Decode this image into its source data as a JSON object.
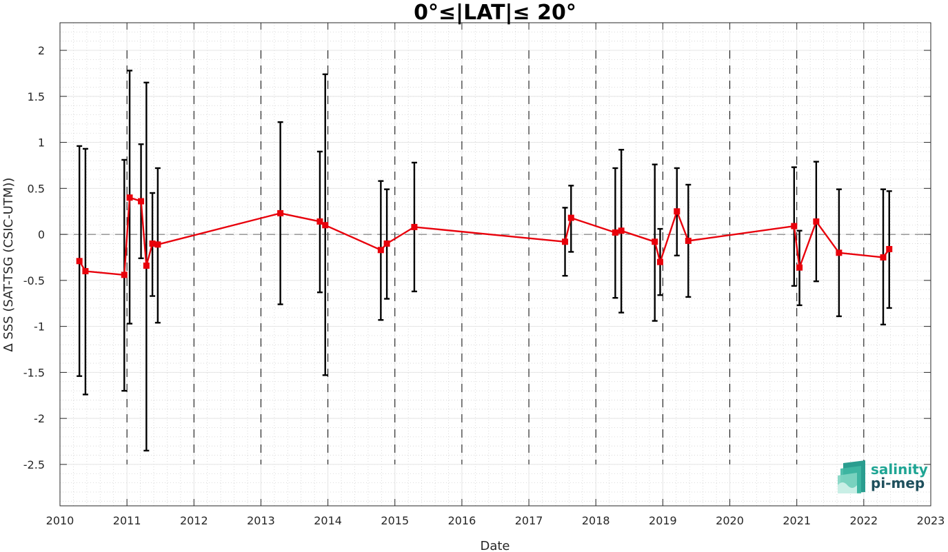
{
  "chart_data": {
    "type": "line",
    "title": "0°≤|LAT|≤ 20°",
    "xlabel": "Date",
    "ylabel": "∆ SSS (SAT-TSG (CSIC-UTM))",
    "xlim": [
      2010,
      2023
    ],
    "ylim": [
      -2.95,
      2.3
    ],
    "xticks": [
      "2010",
      "2011",
      "2012",
      "2013",
      "2014",
      "2015",
      "2016",
      "2017",
      "2018",
      "2019",
      "2020",
      "2021",
      "2022",
      "2023"
    ],
    "yticks": [
      "2",
      "1.5",
      "1",
      "0.5",
      "0",
      "-0.5",
      "-1",
      "-1.5",
      "-2",
      "-2.5"
    ],
    "grid": true,
    "zero_line": true,
    "year_markers": [
      2011,
      2012,
      2013,
      2014,
      2015,
      2016,
      2017,
      2018,
      2019,
      2020,
      2021,
      2022
    ],
    "series": [
      {
        "color": "#e8000b",
        "marker": "square",
        "x": [
          2010.29,
          2010.38,
          2010.96,
          2011.04,
          2011.21,
          2011.29,
          2011.38,
          2011.46,
          2013.29,
          2013.88,
          2013.96,
          2014.79,
          2014.88,
          2015.29,
          2017.54,
          2017.63,
          2018.29,
          2018.38,
          2018.88,
          2018.96,
          2019.21,
          2019.38,
          2020.96,
          2021.04,
          2021.29,
          2021.63,
          2022.29,
          2022.38
        ],
        "y": [
          -0.29,
          -0.4,
          -0.44,
          0.4,
          0.36,
          -0.34,
          -0.1,
          -0.11,
          0.23,
          0.14,
          0.1,
          -0.17,
          -0.1,
          0.08,
          -0.08,
          0.18,
          0.02,
          0.04,
          -0.08,
          -0.3,
          0.25,
          -0.07,
          0.09,
          -0.36,
          0.14,
          -0.2,
          -0.25,
          -0.16
        ],
        "err_low": [
          -1.54,
          -1.74,
          -1.7,
          -0.97,
          -0.26,
          -2.35,
          -0.67,
          -0.96,
          -0.76,
          -0.63,
          -1.53,
          -0.93,
          -0.7,
          -0.62,
          -0.45,
          -0.19,
          -0.69,
          -0.85,
          -0.94,
          -0.66,
          -0.23,
          -0.68,
          -0.56,
          -0.77,
          -0.51,
          -0.89,
          -0.98,
          -0.8
        ],
        "err_high": [
          0.96,
          0.93,
          0.81,
          1.78,
          0.98,
          1.65,
          0.45,
          0.72,
          1.22,
          0.9,
          1.74,
          0.58,
          0.49,
          0.78,
          0.29,
          0.53,
          0.72,
          0.92,
          0.76,
          0.06,
          0.72,
          0.54,
          0.73,
          0.04,
          0.79,
          0.49,
          0.49,
          0.47
        ]
      }
    ]
  },
  "logo": {
    "line1": "salinity",
    "line2": "pi-mep"
  }
}
